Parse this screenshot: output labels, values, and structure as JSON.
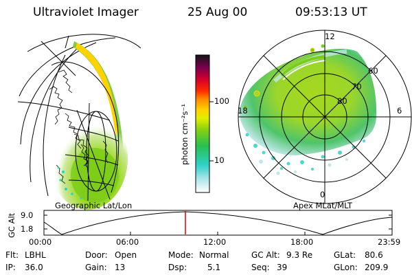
{
  "header": {
    "instrument": "Ultraviolet Imager",
    "date": "25 Aug 00",
    "time": "09:53:13 UT"
  },
  "colorbar": {
    "unit_label": "photon cm⁻²s⁻¹",
    "scale": "log",
    "ticks": [
      "100",
      "10"
    ],
    "colors": [
      "#ffffff",
      "#b7e6ee",
      "#2fd1c7",
      "#27c04f",
      "#8ad10f",
      "#e2ee00",
      "#ffd200",
      "#ff8a00",
      "#ff2a00",
      "#d6002a",
      "#7a0050",
      "#141414"
    ]
  },
  "left_panel": {
    "caption": "Geographic Lat/Lon"
  },
  "right_panel": {
    "caption": "Apex MLat/MLT",
    "mlt_labels": {
      "top": "12",
      "left": "18",
      "right": "6",
      "bottom": "0"
    },
    "mlat_labels": [
      "60",
      "70",
      "80"
    ]
  },
  "altitude_plot": {
    "axis_title": "GC Alt",
    "y_ticks": [
      "9.0",
      "1.8"
    ],
    "x_ticks": [
      "00:00",
      "06:00",
      "12:00",
      "18:00",
      "23:59"
    ],
    "current_time_color": "#e00000"
  },
  "status": {
    "flt": {
      "label": "Flt:",
      "value": "LBHL"
    },
    "ip": {
      "label": "IP:",
      "value": "36.0"
    },
    "door": {
      "label": "Door:",
      "value": "Open"
    },
    "gain": {
      "label": "Gain:",
      "value": "13"
    },
    "mode": {
      "label": "Mode:",
      "value": "Normal"
    },
    "dsp": {
      "label": "Dsp:",
      "value": "5.1"
    },
    "gc_alt": {
      "label": "GC Alt:",
      "value": "9.3 Re"
    },
    "seq": {
      "label": "Seq:",
      "value": "39"
    },
    "glat": {
      "label": "GLat:",
      "value": "80.6"
    },
    "glon": {
      "label": "GLon:",
      "value": "209.9"
    }
  }
}
